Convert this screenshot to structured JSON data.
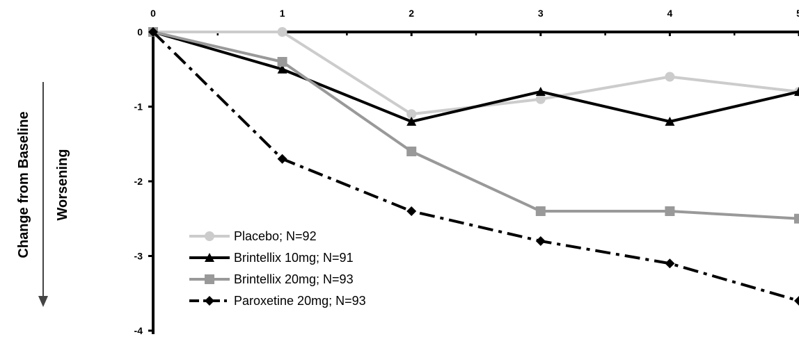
{
  "chart_data": {
    "type": "line",
    "title": "",
    "xlabel": "",
    "ylabel": "Change from Baseline",
    "annotation": "Worsening",
    "x": [
      0,
      1,
      2,
      3,
      4,
      5
    ],
    "x_tick_labels": [
      "0",
      "1",
      "2",
      "3",
      "4",
      "5"
    ],
    "y_tick_labels": [
      "0",
      "-1",
      "-2",
      "-3",
      "-4"
    ],
    "xlim": [
      0,
      5
    ],
    "ylim": [
      -4,
      0
    ],
    "grid": false,
    "legend_position": "bottom-left",
    "series": [
      {
        "name": "Placebo; N=92",
        "values": [
          0,
          0,
          -1.1,
          -0.9,
          -0.6,
          -0.8
        ],
        "color": "#cccccc",
        "marker": "circle",
        "dash": "solid"
      },
      {
        "name": "Brintellix 10mg; N=91",
        "values": [
          0,
          -0.5,
          -1.2,
          -0.8,
          -1.2,
          -0.8
        ],
        "color": "#000000",
        "marker": "triangle",
        "dash": "solid"
      },
      {
        "name": "Brintellix 20mg; N=93",
        "values": [
          0,
          -0.4,
          -1.6,
          -2.4,
          -2.4,
          -2.5
        ],
        "color": "#999999",
        "marker": "square",
        "dash": "solid"
      },
      {
        "name": "Paroxetine 20mg; N=93",
        "values": [
          0,
          -1.7,
          -2.4,
          -2.8,
          -3.1,
          -3.6
        ],
        "color": "#000000",
        "marker": "diamond",
        "dash": "dashdot"
      }
    ]
  }
}
